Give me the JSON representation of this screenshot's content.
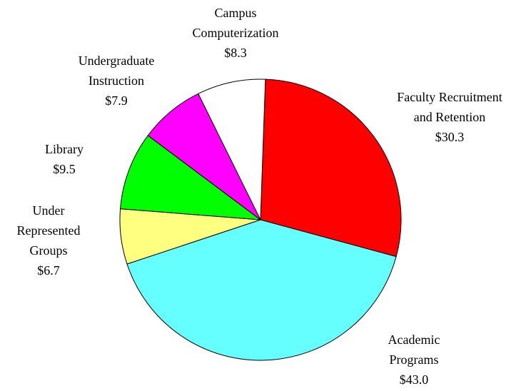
{
  "chart_data": {
    "type": "pie",
    "categories": [
      [
        "Faculty Recruitment",
        "and Retention"
      ],
      [
        "Academic",
        "Programs"
      ],
      [
        "Under",
        "Represented",
        "Groups"
      ],
      [
        "Library"
      ],
      [
        "Undergraduate",
        "Instruction"
      ],
      [
        "Campus",
        "Computerization"
      ]
    ],
    "values": [
      30.3,
      43.0,
      6.7,
      9.5,
      7.9,
      8.3
    ],
    "value_labels": [
      "$30.3",
      "$43.0",
      "$6.7",
      "$9.5",
      "$7.9",
      "$8.3"
    ],
    "colors": [
      "#ff0000",
      "#66ffff",
      "#ffff80",
      "#00ff00",
      "#ff00ff",
      "#ffffff"
    ]
  }
}
